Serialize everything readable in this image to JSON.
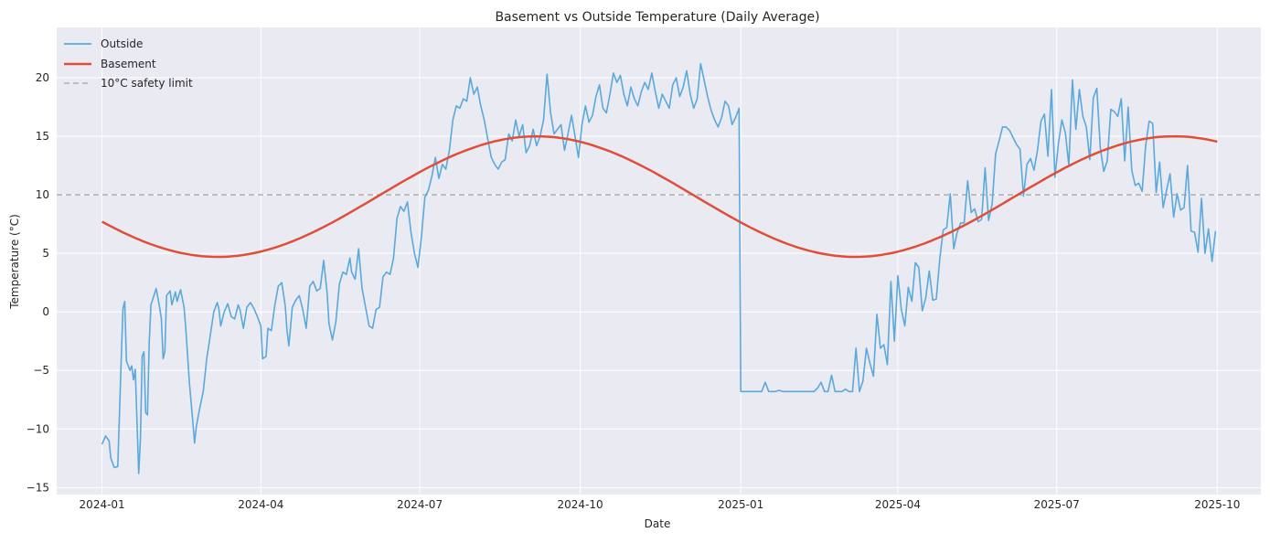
{
  "chart_data": {
    "type": "line",
    "title": "Basement vs Outside Temperature (Daily Average)",
    "xlabel": "Date",
    "ylabel": "Temperature (°C)",
    "x_range": [
      "2023-12-06",
      "2025-10-26"
    ],
    "ylim": [
      -15.6,
      24.3
    ],
    "grid": true,
    "legend_position": "top-left",
    "x_ticks": [
      {
        "date": "2024-01-01",
        "label": "2024-01"
      },
      {
        "date": "2024-04-01",
        "label": "2024-04"
      },
      {
        "date": "2024-07-01",
        "label": "2024-07"
      },
      {
        "date": "2024-10-01",
        "label": "2024-10"
      },
      {
        "date": "2025-01-01",
        "label": "2025-01"
      },
      {
        "date": "2025-04-01",
        "label": "2025-04"
      },
      {
        "date": "2025-07-01",
        "label": "2025-07"
      },
      {
        "date": "2025-10-01",
        "label": "2025-10"
      }
    ],
    "y_ticks": [
      {
        "value": 20,
        "label": "20"
      },
      {
        "value": 15,
        "label": "15"
      },
      {
        "value": 10,
        "label": "10"
      },
      {
        "value": 5,
        "label": "5"
      },
      {
        "value": 0,
        "label": "0"
      },
      {
        "value": -5,
        "label": "−5"
      },
      {
        "value": -10,
        "label": "−10"
      },
      {
        "value": -15,
        "label": "−15"
      }
    ],
    "series": [
      {
        "name": "Outside",
        "color": "#5aa9dc",
        "style": "solid",
        "start_date": "2024-01-01",
        "end_date": "2025-10-01",
        "points": [
          [
            "2024-01-01",
            -11.3
          ],
          [
            "2024-01-03",
            -10.6
          ],
          [
            "2024-01-05",
            -11.0
          ],
          [
            "2024-01-06",
            -12.5
          ],
          [
            "2024-01-08",
            -13.3
          ],
          [
            "2024-01-10",
            -13.2
          ],
          [
            "2024-01-12",
            -4.0
          ],
          [
            "2024-01-13",
            0.3
          ],
          [
            "2024-01-14",
            0.9
          ],
          [
            "2024-01-15",
            -4.2
          ],
          [
            "2024-01-17",
            -5.0
          ],
          [
            "2024-01-18",
            -4.6
          ],
          [
            "2024-01-19",
            -5.8
          ],
          [
            "2024-01-20",
            -4.9
          ],
          [
            "2024-01-21",
            -9.3
          ],
          [
            "2024-01-22",
            -13.8
          ],
          [
            "2024-01-23",
            -10.8
          ],
          [
            "2024-01-24",
            -3.8
          ],
          [
            "2024-01-25",
            -3.4
          ],
          [
            "2024-01-26",
            -8.6
          ],
          [
            "2024-01-27",
            -8.8
          ],
          [
            "2024-01-28",
            -2.6
          ],
          [
            "2024-01-29",
            0.6
          ],
          [
            "2024-02-01",
            2.0
          ],
          [
            "2024-02-03",
            0.4
          ],
          [
            "2024-02-04",
            -0.6
          ],
          [
            "2024-02-05",
            -4.0
          ],
          [
            "2024-02-06",
            -3.4
          ],
          [
            "2024-02-07",
            1.4
          ],
          [
            "2024-02-09",
            1.8
          ],
          [
            "2024-02-10",
            0.6
          ],
          [
            "2024-02-12",
            1.7
          ],
          [
            "2024-02-13",
            0.9
          ],
          [
            "2024-02-15",
            1.9
          ],
          [
            "2024-02-17",
            0.4
          ],
          [
            "2024-02-18",
            -1.4
          ],
          [
            "2024-02-20",
            -6.0
          ],
          [
            "2024-02-22",
            -9.4
          ],
          [
            "2024-02-23",
            -11.2
          ],
          [
            "2024-02-24",
            -9.8
          ],
          [
            "2024-02-26",
            -8.2
          ],
          [
            "2024-02-28",
            -6.8
          ],
          [
            "2024-03-01",
            -4.0
          ],
          [
            "2024-03-03",
            -2.0
          ],
          [
            "2024-03-05",
            0.0
          ],
          [
            "2024-03-07",
            0.8
          ],
          [
            "2024-03-08",
            0.2
          ],
          [
            "2024-03-09",
            -1.2
          ],
          [
            "2024-03-11",
            0.0
          ],
          [
            "2024-03-13",
            0.7
          ],
          [
            "2024-03-15",
            -0.4
          ],
          [
            "2024-03-17",
            -0.6
          ],
          [
            "2024-03-19",
            0.6
          ],
          [
            "2024-03-20",
            0.2
          ],
          [
            "2024-03-22",
            -1.4
          ],
          [
            "2024-03-24",
            0.4
          ],
          [
            "2024-03-26",
            0.8
          ],
          [
            "2024-03-28",
            0.3
          ],
          [
            "2024-03-30",
            -0.4
          ],
          [
            "2024-04-01",
            -1.2
          ],
          [
            "2024-04-02",
            -4.0
          ],
          [
            "2024-04-04",
            -3.8
          ],
          [
            "2024-04-05",
            -1.4
          ],
          [
            "2024-04-07",
            -1.6
          ],
          [
            "2024-04-09",
            0.6
          ],
          [
            "2024-04-11",
            2.2
          ],
          [
            "2024-04-13",
            2.5
          ],
          [
            "2024-04-15",
            0.5
          ],
          [
            "2024-04-16",
            -1.6
          ],
          [
            "2024-04-17",
            -2.9
          ],
          [
            "2024-04-19",
            0.4
          ],
          [
            "2024-04-21",
            1.0
          ],
          [
            "2024-04-23",
            1.4
          ],
          [
            "2024-04-25",
            0.2
          ],
          [
            "2024-04-27",
            -1.4
          ],
          [
            "2024-04-29",
            2.2
          ],
          [
            "2024-05-01",
            2.6
          ],
          [
            "2024-05-03",
            1.8
          ],
          [
            "2024-05-05",
            2.0
          ],
          [
            "2024-05-07",
            4.4
          ],
          [
            "2024-05-09",
            1.6
          ],
          [
            "2024-05-10",
            -1.0
          ],
          [
            "2024-05-12",
            -2.4
          ],
          [
            "2024-05-14",
            -0.8
          ],
          [
            "2024-05-16",
            2.4
          ],
          [
            "2024-05-18",
            3.4
          ],
          [
            "2024-05-20",
            3.2
          ],
          [
            "2024-05-22",
            4.6
          ],
          [
            "2024-05-23",
            3.4
          ],
          [
            "2024-05-25",
            2.8
          ],
          [
            "2024-05-27",
            5.4
          ],
          [
            "2024-05-29",
            2.0
          ],
          [
            "2024-05-31",
            0.4
          ],
          [
            "2024-06-02",
            -1.2
          ],
          [
            "2024-06-04",
            -1.4
          ],
          [
            "2024-06-06",
            0.2
          ],
          [
            "2024-06-08",
            0.4
          ],
          [
            "2024-06-10",
            3.0
          ],
          [
            "2024-06-12",
            3.4
          ],
          [
            "2024-06-14",
            3.2
          ],
          [
            "2024-06-16",
            4.6
          ],
          [
            "2024-06-18",
            8.0
          ],
          [
            "2024-06-20",
            9.0
          ],
          [
            "2024-06-22",
            8.6
          ],
          [
            "2024-06-24",
            9.4
          ],
          [
            "2024-06-26",
            6.8
          ],
          [
            "2024-06-28",
            5.0
          ],
          [
            "2024-06-30",
            3.8
          ],
          [
            "2024-07-02",
            6.4
          ],
          [
            "2024-07-04",
            9.8
          ],
          [
            "2024-07-06",
            10.4
          ],
          [
            "2024-07-08",
            11.6
          ],
          [
            "2024-07-10",
            13.2
          ],
          [
            "2024-07-12",
            11.4
          ],
          [
            "2024-07-14",
            12.6
          ],
          [
            "2024-07-16",
            12.2
          ],
          [
            "2024-07-18",
            13.8
          ],
          [
            "2024-07-20",
            16.4
          ],
          [
            "2024-07-22",
            17.6
          ],
          [
            "2024-07-24",
            17.4
          ],
          [
            "2024-07-26",
            18.2
          ],
          [
            "2024-07-28",
            18.0
          ],
          [
            "2024-07-30",
            20.0
          ],
          [
            "2024-08-01",
            18.6
          ],
          [
            "2024-08-03",
            19.2
          ],
          [
            "2024-08-05",
            17.6
          ],
          [
            "2024-08-07",
            16.4
          ],
          [
            "2024-08-09",
            14.8
          ],
          [
            "2024-08-11",
            13.2
          ],
          [
            "2024-08-13",
            12.6
          ],
          [
            "2024-08-15",
            12.2
          ],
          [
            "2024-08-17",
            12.8
          ],
          [
            "2024-08-19",
            13.0
          ],
          [
            "2024-08-21",
            15.2
          ],
          [
            "2024-08-23",
            14.6
          ],
          [
            "2024-08-25",
            16.4
          ],
          [
            "2024-08-27",
            15.0
          ],
          [
            "2024-08-29",
            16.0
          ],
          [
            "2024-08-31",
            13.6
          ],
          [
            "2024-09-02",
            14.2
          ],
          [
            "2024-09-04",
            15.6
          ],
          [
            "2024-09-06",
            14.2
          ],
          [
            "2024-09-08",
            15.0
          ],
          [
            "2024-09-10",
            16.4
          ],
          [
            "2024-09-12",
            20.3
          ],
          [
            "2024-09-14",
            17.0
          ],
          [
            "2024-09-16",
            15.2
          ],
          [
            "2024-09-18",
            15.6
          ],
          [
            "2024-09-20",
            16.0
          ],
          [
            "2024-09-22",
            13.8
          ],
          [
            "2024-09-24",
            15.2
          ],
          [
            "2024-09-26",
            16.8
          ],
          [
            "2024-09-28",
            15.0
          ],
          [
            "2024-09-30",
            13.2
          ],
          [
            "2024-10-02",
            16.0
          ],
          [
            "2024-10-04",
            17.6
          ],
          [
            "2024-10-06",
            16.2
          ],
          [
            "2024-10-08",
            16.8
          ],
          [
            "2024-10-10",
            18.4
          ],
          [
            "2024-10-12",
            19.4
          ],
          [
            "2024-10-14",
            17.4
          ],
          [
            "2024-10-16",
            17.0
          ],
          [
            "2024-10-18",
            18.6
          ],
          [
            "2024-10-20",
            20.4
          ],
          [
            "2024-10-22",
            19.6
          ],
          [
            "2024-10-24",
            20.2
          ],
          [
            "2024-10-26",
            18.6
          ],
          [
            "2024-10-28",
            17.6
          ],
          [
            "2024-10-30",
            19.2
          ],
          [
            "2024-11-01",
            18.2
          ],
          [
            "2024-11-03",
            17.6
          ],
          [
            "2024-11-05",
            18.8
          ],
          [
            "2024-11-07",
            19.6
          ],
          [
            "2024-11-09",
            19.0
          ],
          [
            "2024-11-11",
            20.4
          ],
          [
            "2024-11-13",
            18.8
          ],
          [
            "2024-11-15",
            17.4
          ],
          [
            "2024-11-17",
            18.6
          ],
          [
            "2024-11-19",
            18.0
          ],
          [
            "2024-11-21",
            17.4
          ],
          [
            "2024-11-23",
            19.4
          ],
          [
            "2024-11-25",
            20.0
          ],
          [
            "2024-11-27",
            18.4
          ],
          [
            "2024-11-29",
            19.2
          ],
          [
            "2024-12-01",
            20.6
          ],
          [
            "2024-12-03",
            18.6
          ],
          [
            "2024-12-05",
            17.4
          ],
          [
            "2024-12-07",
            18.2
          ],
          [
            "2024-12-09",
            21.2
          ],
          [
            "2024-12-11",
            19.8
          ],
          [
            "2024-12-13",
            18.4
          ],
          [
            "2024-12-15",
            17.2
          ],
          [
            "2024-12-17",
            16.4
          ],
          [
            "2024-12-19",
            15.8
          ],
          [
            "2024-12-21",
            16.6
          ],
          [
            "2024-12-23",
            18.0
          ],
          [
            "2024-12-25",
            17.6
          ],
          [
            "2024-12-27",
            16.0
          ],
          [
            "2024-12-29",
            16.6
          ],
          [
            "2024-12-31",
            17.4
          ]
        ]
      },
      {
        "name": "Basement",
        "color": "#e04e39",
        "style": "solid",
        "start_date": "2024-01-01",
        "end_date": "2025-10-01"
      },
      {
        "name": "10°C safety limit",
        "color": "#b0b0b0",
        "style": "dashed",
        "value": 10
      }
    ]
  }
}
